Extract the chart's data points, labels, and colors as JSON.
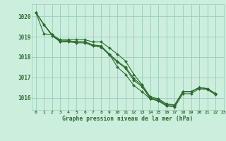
{
  "title": "Graphe pression niveau de la mer (hPa)",
  "background_color": "#cceedd",
  "grid_color": "#99ccbb",
  "line_color": "#2d6b2d",
  "marker_color": "#2d6b2d",
  "xlim": [
    -0.5,
    23
  ],
  "ylim": [
    1015.4,
    1020.6
  ],
  "yticks": [
    1016,
    1017,
    1018,
    1019,
    1020
  ],
  "xtick_labels": [
    "0",
    "1",
    "2",
    "3",
    "4",
    "5",
    "6",
    "7",
    "8",
    "9",
    "10",
    "11",
    "12",
    "13",
    "14",
    "15",
    "16",
    "17",
    "18",
    "19",
    "20",
    "21",
    "22",
    "23"
  ],
  "series": [
    [
      1020.2,
      1019.6,
      1019.1,
      1018.85,
      1018.85,
      1018.85,
      1018.85,
      1018.75,
      1018.75,
      1018.45,
      1018.15,
      1017.8,
      1017.15,
      1016.65,
      1016.05,
      1015.95,
      1015.7,
      1015.65,
      1016.3,
      1016.3,
      1016.5,
      1016.45,
      1016.2,
      null
    ],
    [
      1020.2,
      1019.6,
      1019.05,
      1018.75,
      1018.75,
      1018.7,
      1018.7,
      1018.55,
      1018.5,
      1018.1,
      1017.75,
      1017.45,
      1016.85,
      1016.55,
      1015.95,
      1015.85,
      1015.6,
      1015.55,
      1016.2,
      1016.2,
      1016.45,
      1016.4,
      1016.15,
      null
    ],
    [
      1020.2,
      1019.15,
      1019.1,
      1018.8,
      1018.8,
      1018.75,
      1018.75,
      1018.6,
      1018.55,
      1018.15,
      1017.8,
      1017.5,
      1016.95,
      1016.6,
      1016.0,
      1015.9,
      1015.65,
      1015.65,
      1016.3,
      1016.3,
      1016.5,
      1016.45,
      1016.2,
      null
    ],
    [
      1020.2,
      1019.6,
      1019.1,
      1018.75,
      1018.8,
      1018.75,
      1018.75,
      1018.6,
      1018.5,
      1018.15,
      1017.5,
      1017.15,
      1016.6,
      1016.3,
      1015.95,
      1015.85,
      1015.6,
      1015.6,
      1016.3,
      1016.3,
      1016.5,
      1016.45,
      1016.2,
      null
    ]
  ],
  "figsize": [
    3.2,
    2.0
  ],
  "dpi": 100
}
